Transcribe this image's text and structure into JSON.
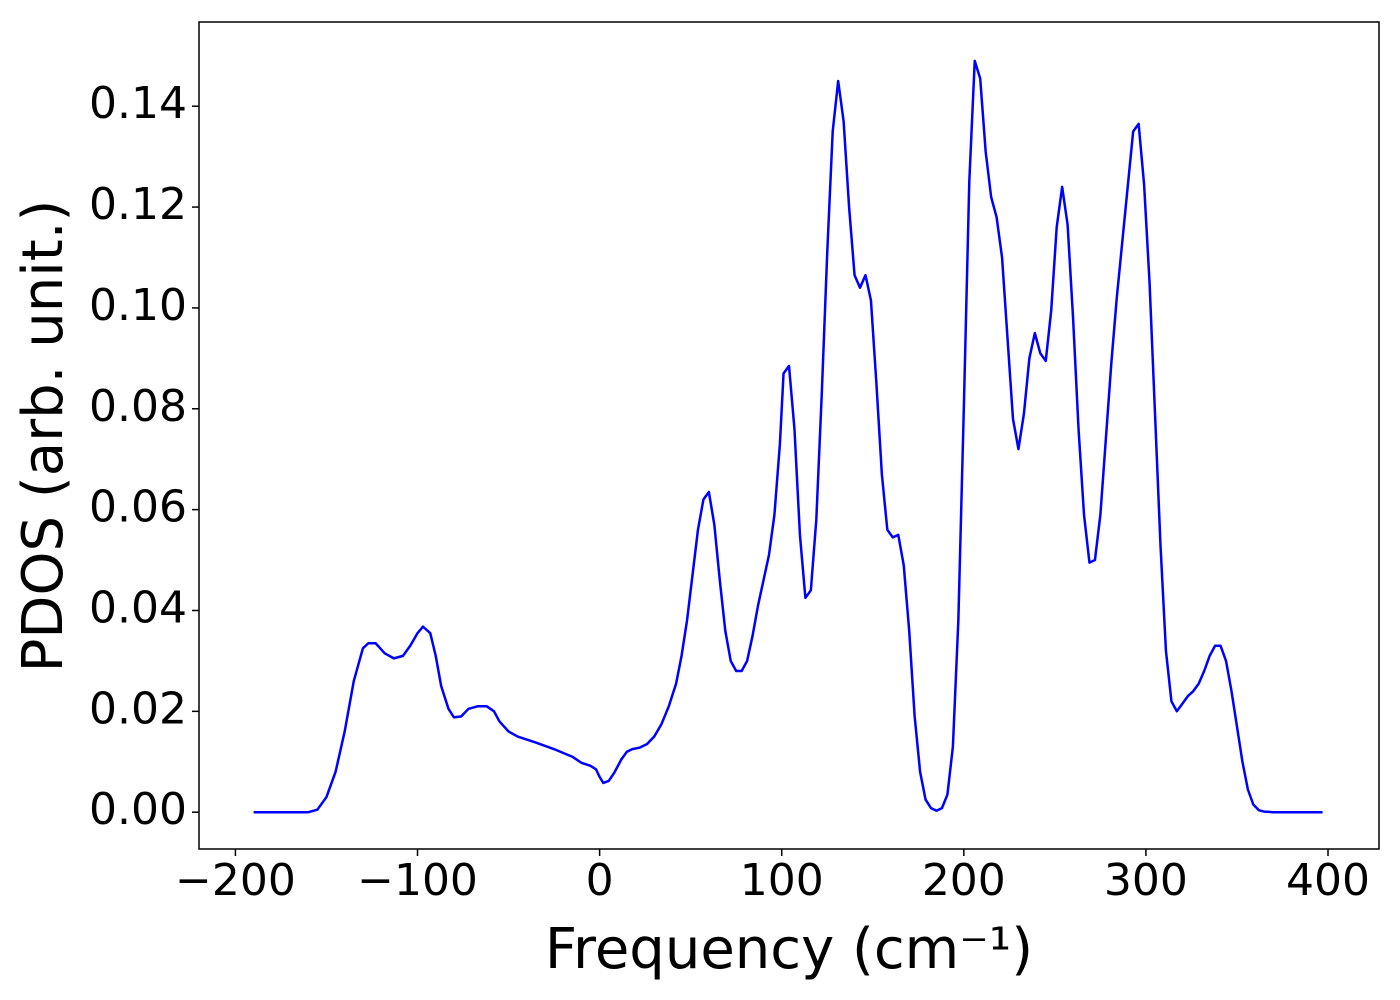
{
  "chart_data": {
    "type": "line",
    "xlabel": "Frequency (cm⁻¹)",
    "ylabel": "PDOS (arb. unit.)",
    "x": [
      -190,
      -160,
      -155,
      -150,
      -145,
      -140,
      -135,
      -130,
      -127,
      -123,
      -118,
      -113,
      -108,
      -104,
      -100,
      -97,
      -93,
      -90,
      -87,
      -83,
      -80,
      -76,
      -72,
      -67,
      -62,
      -58,
      -55,
      -50,
      -45,
      -35,
      -25,
      -15,
      -10,
      -5,
      -2,
      0,
      2,
      5,
      8,
      12,
      15,
      18,
      22,
      26,
      30,
      34,
      38,
      42,
      45,
      48,
      51,
      54,
      57,
      60,
      63,
      66,
      69,
      72,
      75,
      78,
      81,
      84,
      87,
      90,
      93,
      96,
      99,
      101,
      104,
      107,
      110,
      113,
      116,
      119,
      122,
      125,
      128,
      131,
      134,
      137,
      140,
      143,
      146,
      149,
      152,
      155,
      158,
      161,
      164,
      167,
      170,
      173,
      176,
      179,
      182,
      185,
      188,
      191,
      194,
      197,
      200,
      203,
      206,
      209,
      212,
      215,
      218,
      221,
      224,
      227,
      230,
      233,
      236,
      239,
      242,
      245,
      248,
      251,
      254,
      257,
      260,
      263,
      266,
      269,
      272,
      275,
      278,
      281,
      284,
      287,
      290,
      293,
      296,
      299,
      302,
      305,
      308,
      311,
      314,
      317,
      320,
      323,
      326,
      329,
      332,
      335,
      338,
      341,
      344,
      347,
      350,
      353,
      356,
      359,
      362,
      365,
      370,
      380,
      397
    ],
    "series": [
      {
        "color": "#0000ff",
        "values": [
          0,
          0,
          0.0005,
          0.003,
          0.008,
          0.016,
          0.026,
          0.0325,
          0.0335,
          0.0335,
          0.0315,
          0.0305,
          0.031,
          0.033,
          0.0355,
          0.0368,
          0.0355,
          0.031,
          0.025,
          0.0205,
          0.0188,
          0.019,
          0.0205,
          0.021,
          0.021,
          0.02,
          0.018,
          0.016,
          0.015,
          0.0138,
          0.0125,
          0.011,
          0.0098,
          0.0092,
          0.0085,
          0.007,
          0.0058,
          0.0062,
          0.0078,
          0.0105,
          0.012,
          0.0125,
          0.0128,
          0.0135,
          0.015,
          0.0175,
          0.021,
          0.0255,
          0.031,
          0.038,
          0.047,
          0.056,
          0.062,
          0.0635,
          0.057,
          0.046,
          0.036,
          0.03,
          0.028,
          0.028,
          0.03,
          0.035,
          0.041,
          0.046,
          0.051,
          0.059,
          0.073,
          0.087,
          0.0885,
          0.076,
          0.055,
          0.0425,
          0.044,
          0.058,
          0.083,
          0.111,
          0.135,
          0.145,
          0.137,
          0.12,
          0.1065,
          0.104,
          0.1065,
          0.1015,
          0.085,
          0.067,
          0.056,
          0.0545,
          0.055,
          0.049,
          0.036,
          0.019,
          0.008,
          0.0025,
          0.0008,
          0.0003,
          0.0008,
          0.0035,
          0.013,
          0.038,
          0.08,
          0.125,
          0.149,
          0.1455,
          0.131,
          0.122,
          0.118,
          0.11,
          0.094,
          0.078,
          0.072,
          0.079,
          0.09,
          0.095,
          0.091,
          0.0895,
          0.0995,
          0.116,
          0.124,
          0.1165,
          0.098,
          0.076,
          0.059,
          0.0495,
          0.05,
          0.059,
          0.074,
          0.089,
          0.102,
          0.113,
          0.124,
          0.135,
          0.1365,
          0.1245,
          0.105,
          0.079,
          0.053,
          0.032,
          0.022,
          0.02,
          0.0215,
          0.023,
          0.024,
          0.0255,
          0.028,
          0.031,
          0.033,
          0.033,
          0.03,
          0.024,
          0.017,
          0.01,
          0.0045,
          0.0015,
          0.0004,
          0.0001,
          0,
          0,
          0
        ]
      }
    ],
    "xlim": [
      -220,
      428
    ],
    "ylim": [
      -0.0073,
      0.1567
    ],
    "xticks": [
      {
        "value": -200,
        "label": "−200"
      },
      {
        "value": -100,
        "label": "−100"
      },
      0,
      100,
      200,
      300,
      400
    ],
    "yticks": [
      {
        "value": 0,
        "label": "0.00"
      },
      {
        "value": 0.02,
        "label": "0.02"
      },
      {
        "value": 0.04,
        "label": "0.04"
      },
      {
        "value": 0.06,
        "label": "0.06"
      },
      {
        "value": 0.08,
        "label": "0.08"
      },
      {
        "value": 0.1,
        "label": "0.10"
      },
      {
        "value": 0.12,
        "label": "0.12"
      },
      {
        "value": 0.14,
        "label": "0.14"
      }
    ]
  }
}
